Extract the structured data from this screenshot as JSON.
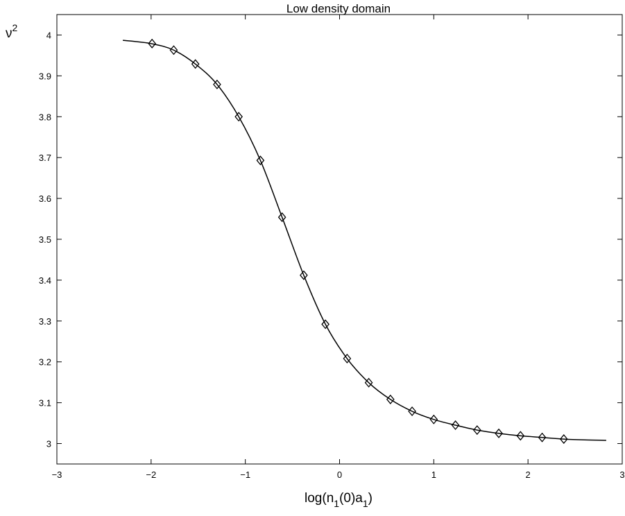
{
  "chart_data": {
    "type": "line",
    "title": "Low density domain",
    "xlabel": {
      "base": "log(n",
      "sub1": "1",
      "mid": "(0)a",
      "sub2": "1",
      "end": ")"
    },
    "ylabel": {
      "base": "ν",
      "sup": "2"
    },
    "xlim": [
      -3,
      3
    ],
    "ylim": [
      2.95,
      4.05
    ],
    "xticks": [
      -3,
      -2,
      -1,
      0,
      1,
      2,
      3
    ],
    "xtick_labels": [
      "−3",
      "−2",
      "−1",
      "0",
      "1",
      "2",
      "3"
    ],
    "yticks": [
      3.0,
      3.1,
      3.2,
      3.3,
      3.4,
      3.5,
      3.6,
      3.7,
      3.8,
      3.9,
      4.0
    ],
    "ytick_labels": [
      "3",
      "3.1",
      "3.2",
      "3.3",
      "3.4",
      "3.5",
      "3.6",
      "3.7",
      "3.8",
      "3.9",
      "4"
    ],
    "grid": false,
    "series": [
      {
        "style": "line",
        "color": "#000000",
        "x": [
          -2.3,
          -2.0,
          -1.76,
          -1.53,
          -1.3,
          -1.07,
          -0.84,
          -0.61,
          -0.38,
          -0.15,
          0.08,
          0.31,
          0.54,
          0.77,
          1.0,
          1.23,
          1.46,
          1.69,
          1.92,
          2.15,
          2.38,
          2.6,
          2.83
        ],
        "y": [
          3.987,
          3.979,
          3.963,
          3.929,
          3.879,
          3.8,
          3.693,
          3.554,
          3.412,
          3.292,
          3.208,
          3.149,
          3.108,
          3.079,
          3.059,
          3.045,
          3.033,
          3.025,
          3.019,
          3.015,
          3.011,
          3.009,
          3.008
        ]
      },
      {
        "style": "diamond-markers",
        "color": "#000000",
        "x": [
          -1.99,
          -1.76,
          -1.53,
          -1.3,
          -1.07,
          -0.84,
          -0.61,
          -0.38,
          -0.15,
          0.08,
          0.31,
          0.54,
          0.77,
          1.0,
          1.23,
          1.46,
          1.69,
          1.92,
          2.15,
          2.38
        ],
        "y": [
          3.979,
          3.963,
          3.929,
          3.879,
          3.8,
          3.693,
          3.554,
          3.412,
          3.292,
          3.208,
          3.149,
          3.108,
          3.079,
          3.059,
          3.045,
          3.033,
          3.025,
          3.019,
          3.015,
          3.011
        ]
      }
    ]
  }
}
